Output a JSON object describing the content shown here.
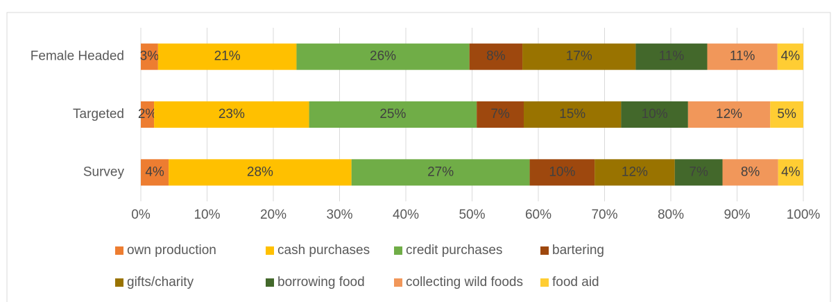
{
  "chart_data": {
    "type": "stacked-bar-horizontal",
    "categories": [
      "Survey",
      "Targeted",
      "Female Headed"
    ],
    "series": [
      {
        "name": "own production",
        "color": "#ED7D31",
        "values": [
          4.2,
          2.0,
          2.6
        ],
        "value_labels": [
          "4%",
          "2%",
          "3%"
        ]
      },
      {
        "name": "cash purchases",
        "color": "#FFC000",
        "values": [
          27.6,
          23.4,
          20.9
        ],
        "value_labels": [
          "28%",
          "23%",
          "21%"
        ]
      },
      {
        "name": "credit purchases",
        "color": "#70AD47",
        "values": [
          26.9,
          25.3,
          26.1
        ],
        "value_labels": [
          "27%",
          "25%",
          "26%"
        ]
      },
      {
        "name": "bartering",
        "color": "#9E480E",
        "values": [
          9.8,
          7.1,
          8.0
        ],
        "value_labels": [
          "10%",
          "7%",
          "8%"
        ]
      },
      {
        "name": "gifts/charity",
        "color": "#997300",
        "values": [
          12.1,
          14.7,
          17.1
        ],
        "value_labels": [
          "12%",
          "15%",
          "17%"
        ]
      },
      {
        "name": "borrowing food",
        "color": "#43682B",
        "values": [
          7.2,
          10.1,
          10.8
        ],
        "value_labels": [
          "7%",
          "10%",
          "11%"
        ]
      },
      {
        "name": "collecting wild foods",
        "color": "#F1975A",
        "values": [
          8.4,
          12.4,
          10.6
        ],
        "value_labels": [
          "8%",
          "12%",
          "11%"
        ]
      },
      {
        "name": "food aid",
        "color": "#FFCD33",
        "values": [
          3.8,
          5.0,
          3.9
        ],
        "value_labels": [
          "4%",
          "5%",
          "4%"
        ]
      }
    ],
    "xlim": [
      0,
      100
    ],
    "xticks": [
      {
        "value": 0,
        "label": "0%"
      },
      {
        "value": 10,
        "label": "10%"
      },
      {
        "value": 20,
        "label": "20%"
      },
      {
        "value": 30,
        "label": "30%"
      },
      {
        "value": 40,
        "label": "40%"
      },
      {
        "value": 50,
        "label": "50%"
      },
      {
        "value": 60,
        "label": "60%"
      },
      {
        "value": 70,
        "label": "70%"
      },
      {
        "value": 80,
        "label": "80%"
      },
      {
        "value": 90,
        "label": "90%"
      },
      {
        "value": 100,
        "label": "100%"
      }
    ],
    "grid": true,
    "legend": "bottom"
  }
}
